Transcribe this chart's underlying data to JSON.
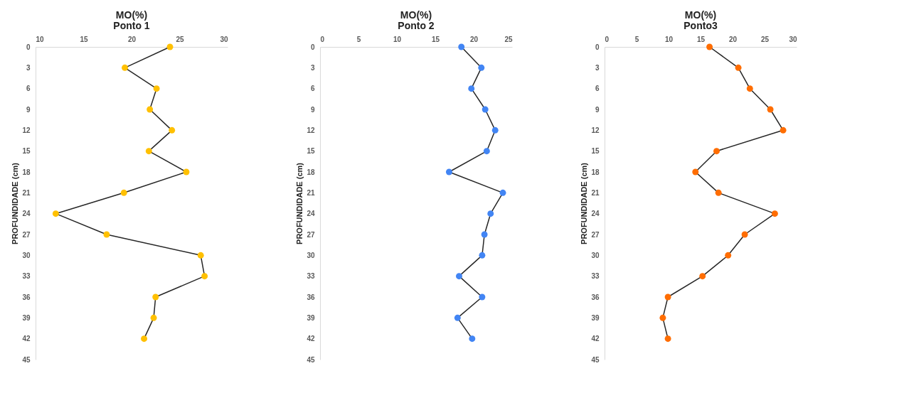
{
  "chart_data": [
    {
      "type": "line",
      "title": "MO(%)",
      "subtitle": "Ponto 1",
      "ylabel": "PROFUNDIDADE (cm)",
      "orientation": "horizontal",
      "marker": "circle",
      "grid": false,
      "x": [
        0,
        3,
        6,
        9,
        12,
        15,
        18,
        21,
        24,
        27,
        30,
        33,
        36,
        39,
        42
      ],
      "series": [
        {
          "color": "#ffc000",
          "values": [
            24.0,
            19.3,
            22.6,
            21.9,
            24.2,
            21.8,
            25.7,
            19.2,
            12.1,
            17.4,
            27.2,
            27.6,
            22.5,
            22.3,
            21.3
          ]
        }
      ],
      "xlim": [
        10,
        30
      ],
      "xticks": [
        10,
        15,
        20,
        25,
        30
      ],
      "ylim": [
        45,
        0
      ],
      "yticks": [
        0,
        3,
        6,
        9,
        12,
        15,
        18,
        21,
        24,
        27,
        30,
        33,
        36,
        39,
        42,
        45
      ]
    },
    {
      "type": "line",
      "title": "MO(%)",
      "subtitle": "Ponto 2",
      "ylabel": "PROFUNDIDADE (cm)",
      "orientation": "horizontal",
      "marker": "circle",
      "grid": false,
      "x": [
        0,
        3,
        6,
        9,
        12,
        15,
        18,
        21,
        24,
        27,
        30,
        33,
        36,
        39,
        42
      ],
      "series": [
        {
          "color": "#4285f4",
          "values": [
            18.4,
            21.0,
            19.7,
            21.5,
            22.8,
            21.7,
            16.8,
            23.8,
            22.2,
            21.4,
            21.1,
            18.1,
            21.1,
            17.9,
            19.8
          ]
        }
      ],
      "xlim": [
        0,
        25
      ],
      "xticks": [
        0,
        5,
        10,
        15,
        20,
        25
      ],
      "ylim": [
        45,
        0
      ],
      "yticks": [
        0,
        3,
        6,
        9,
        12,
        15,
        18,
        21,
        24,
        27,
        30,
        33,
        36,
        39,
        42,
        45
      ]
    },
    {
      "type": "line",
      "title": "MO(%)",
      "subtitle": "Ponto3",
      "ylabel": "PROFUNDIDADE (cm)",
      "orientation": "horizontal",
      "marker": "circle",
      "grid": false,
      "x": [
        0,
        3,
        6,
        9,
        12,
        15,
        18,
        21,
        24,
        27,
        30,
        33,
        36,
        39,
        42
      ],
      "series": [
        {
          "color": "#ff6d01",
          "values": [
            16.4,
            20.9,
            22.7,
            25.9,
            27.9,
            17.5,
            14.2,
            17.8,
            26.6,
            21.9,
            19.3,
            15.3,
            9.9,
            9.1,
            9.9
          ]
        }
      ],
      "xlim": [
        0,
        30
      ],
      "xticks": [
        0,
        5,
        10,
        15,
        20,
        25,
        30
      ],
      "ylim": [
        45,
        0
      ],
      "yticks": [
        0,
        3,
        6,
        9,
        12,
        15,
        18,
        21,
        24,
        27,
        30,
        33,
        36,
        39,
        42,
        45
      ]
    }
  ]
}
